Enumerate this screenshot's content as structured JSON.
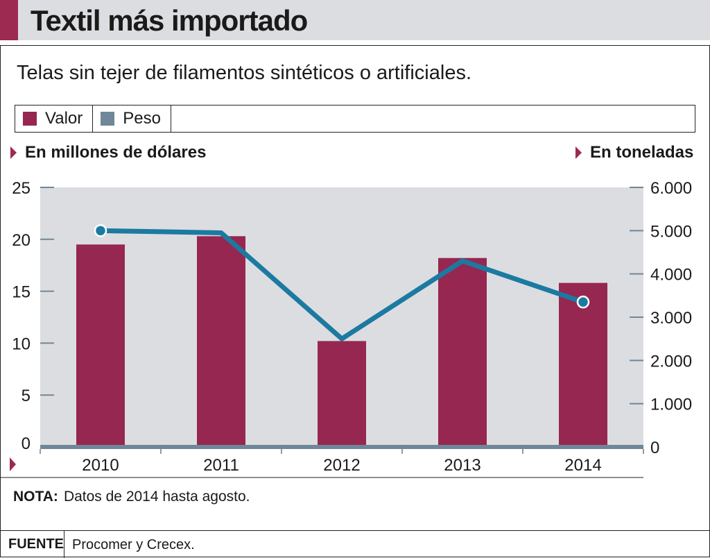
{
  "title": "Textil más importado",
  "subtitle": "Telas sin tejer de filamentos sintéticos o artificiales.",
  "legend": {
    "valor": "Valor",
    "peso": "Peso"
  },
  "left_axis_title": "En millones de dólares",
  "right_axis_title": "En toneladas",
  "note_label": "NOTA:",
  "note_text": "Datos de 2014 hasta agosto.",
  "source_label": "FUENTE",
  "source_text": "Procomer y Crecex.",
  "colors": {
    "bar": "#962750",
    "line": "#1c7aa1",
    "plot_bg": "#dcdde1",
    "baseline": "#6f8798",
    "accent": "#9c2a51"
  },
  "chart_data": {
    "type": "bar",
    "categories": [
      "2010",
      "2011",
      "2012",
      "2013",
      "2014"
    ],
    "series": [
      {
        "name": "Valor",
        "type": "bar",
        "axis": "left",
        "values": [
          19.5,
          20.3,
          10.2,
          18.2,
          15.8
        ]
      },
      {
        "name": "Peso",
        "type": "line",
        "axis": "right",
        "values": [
          5000,
          4950,
          2500,
          4300,
          3350
        ],
        "markers": [
          0,
          4
        ]
      }
    ],
    "y_left": {
      "label": "En millones de dólares",
      "ticks": [
        0,
        5,
        10,
        15,
        20,
        25
      ],
      "tick_labels": [
        "0",
        "5",
        "10",
        "15",
        "20",
        "25"
      ],
      "ylim": [
        0,
        25
      ]
    },
    "y_right": {
      "label": "En toneladas",
      "ticks": [
        0,
        1000,
        2000,
        3000,
        4000,
        5000,
        6000
      ],
      "tick_labels": [
        "0",
        "1.000",
        "2.000",
        "3.000",
        "4.000",
        "5.000",
        "6.000"
      ],
      "ylim": [
        0,
        6000
      ]
    },
    "grid": false,
    "legend_position": "top"
  }
}
